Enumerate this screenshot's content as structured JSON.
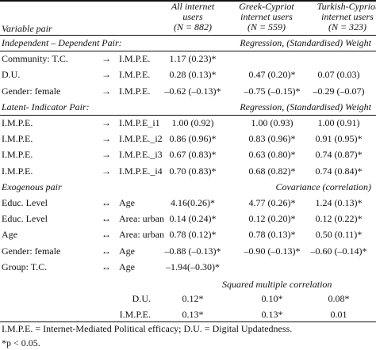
{
  "header": {
    "variable_pair": "Variable pair",
    "col1": [
      "All internet",
      "users",
      "(N = 882)"
    ],
    "col2": [
      "Greek-Cypriot",
      "internet users",
      "(N = 559)"
    ],
    "col3": [
      "Turkish-Cypriot",
      "internet users",
      "(N = 323)"
    ]
  },
  "sections": [
    {
      "label": "Independent – Dependent Pair:",
      "sublabel": "Regression, (Standardised) Weight",
      "rows": [
        {
          "left": "Community: T.C.",
          "arrow": "→",
          "right": "I.M.P.E.",
          "v1": "1.17 (0.23)*",
          "v2": "",
          "v3": ""
        },
        {
          "left": "D.U.",
          "arrow": "→",
          "right": "I.M.P.E.",
          "v1": "0.28 (0.13)*",
          "v2": "0.47 (0.20)*",
          "v3": "0.07 (0.03)"
        },
        {
          "left": "Gender: female",
          "arrow": "→",
          "right": "I.M.P.E.",
          "v1": "–0.62 (–0.13)*",
          "v2": "–0.75 (–0.15)*",
          "v3": "–0.29 (–0.07)"
        }
      ]
    },
    {
      "label": "Latent- Indicator Pair:",
      "sublabel": "Regression, (Standardised) Weight",
      "rows": [
        {
          "left": "I.M.P.E.",
          "arrow": "→",
          "right": "I.M.P.E_i1",
          "v1": "1.00 (0.92)",
          "v2": "1.00 (0.93)",
          "v3": "1.00 (0.91)"
        },
        {
          "left": "I.M.P.E.",
          "arrow": "→",
          "right": "I.M.P.E._i2",
          "v1": "0.86 (0.96)*",
          "v2": "0.83 (0.96)*",
          "v3": "0.91 (0.95)*"
        },
        {
          "left": "I.M.P.E.",
          "arrow": "→",
          "right": "I.M.P.E._i3",
          "v1": "0.67 (0.83)*",
          "v2": "0.63 (0.80)*",
          "v3": "0.74 (0.87)*"
        },
        {
          "left": "I.M.P.E.",
          "arrow": "→",
          "right": "I.M.P.E._i4",
          "v1": "0.70 (0.83)*",
          "v2": "0.68 (0.82)*",
          "v3": "0.74 (0.84)*"
        }
      ]
    },
    {
      "label": "Exogenous pair",
      "sublabel": "Covariance (correlation)",
      "rows": [
        {
          "left": "Educ. Level",
          "arrow": "↔",
          "right": "Age",
          "v1": "4.16(0.26)*",
          "v2": "4.77 (0.26)*",
          "v3": "1.24 (0.13)*"
        },
        {
          "left": "Educ. Level",
          "arrow": "↔",
          "right": "Area: urban",
          "v1": "0.14 (0.24)*",
          "v2": "0.12 (0.20)*",
          "v3": "0.12 (0.22)*"
        },
        {
          "left": "Age",
          "arrow": "↔",
          "right": "Area: urban",
          "v1": "0.78 (0.12)*",
          "v2": "0.78 (0.13)*",
          "v3": "0.50 (0.11)*"
        },
        {
          "left": "Gender: female",
          "arrow": "↔",
          "right": "Age",
          "v1": "–0.88 (–0.13)*",
          "v2": "–0.90 (–0.13)*",
          "v3": "–0.60 (–0.14)*"
        },
        {
          "left": "Group: T.C.",
          "arrow": "↔",
          "right": "Age",
          "v1": "–1.94(–0.30)*",
          "v2": "",
          "v3": ""
        }
      ]
    }
  ],
  "smc": {
    "label": "Squared multiple correlation",
    "rows": [
      {
        "name": "D.U.",
        "v1": "0.12*",
        "v2": "0.10*",
        "v3": "0.08*"
      },
      {
        "name": "I.M.P.E.",
        "v1": "0.13*",
        "v2": "0.13*",
        "v3": "0.01"
      }
    ]
  },
  "footnotes": [
    "I.M.P.E. = Internet-Mediated Political efficacy; D.U. = Digital Updatedness.",
    "*p < 0.05."
  ]
}
